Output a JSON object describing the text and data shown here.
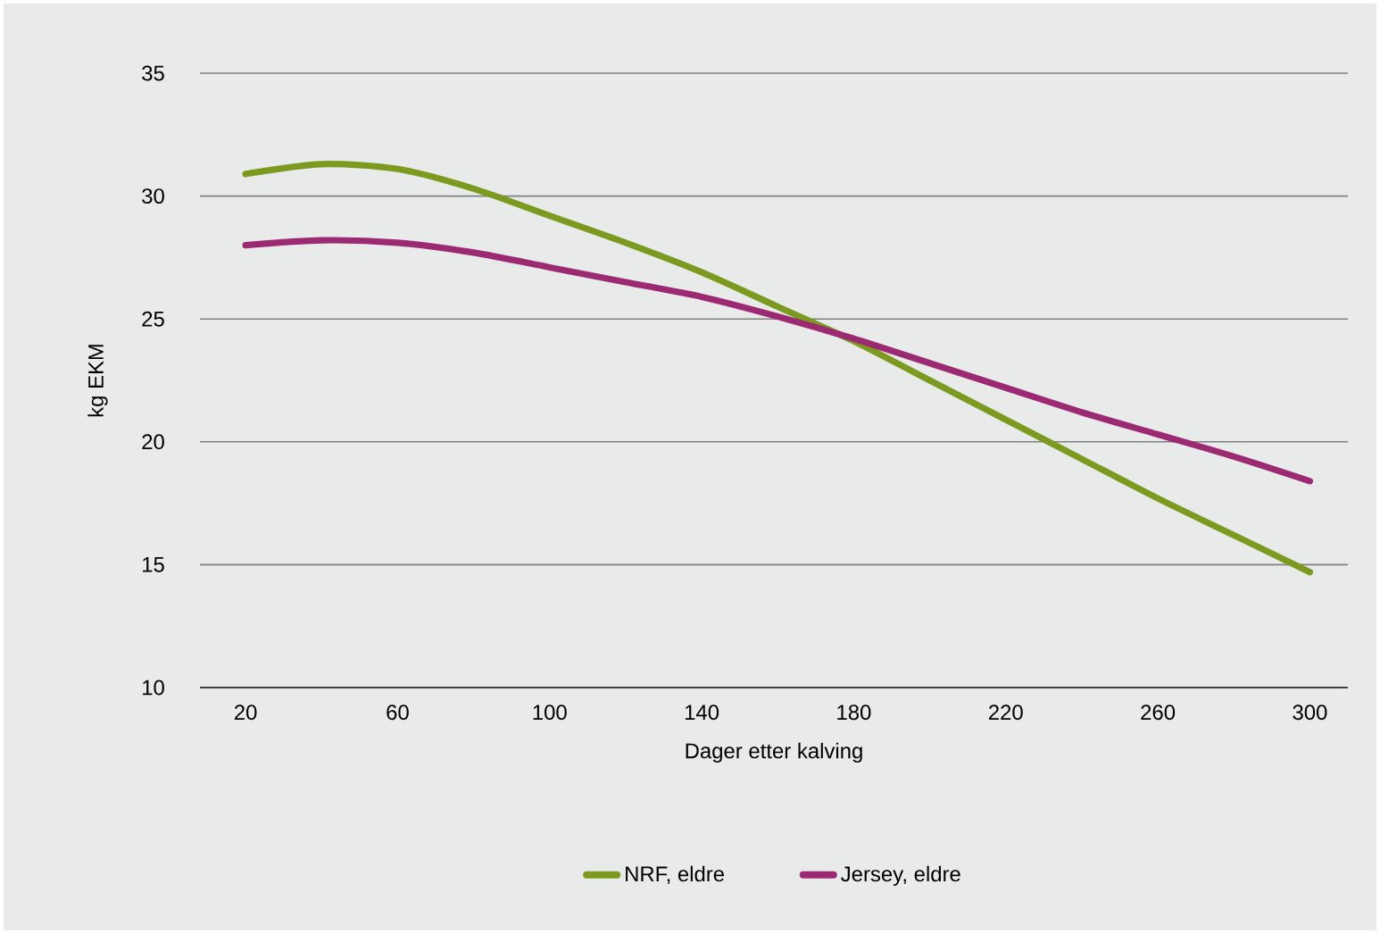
{
  "chart_data": {
    "type": "line",
    "xlabel": "Dager etter kalving",
    "ylabel": "kg EKM",
    "xlim": [
      8,
      310
    ],
    "ylim": [
      10,
      35
    ],
    "xticks": [
      20,
      60,
      100,
      140,
      180,
      220,
      260,
      300
    ],
    "yticks": [
      10,
      15,
      20,
      25,
      30,
      35
    ],
    "grid": "y",
    "legend": "bottom",
    "marker": "none",
    "line_style": "solid",
    "series": [
      {
        "name": "NRF, eldre",
        "color": "#7b9a1f",
        "x": [
          20,
          40,
          60,
          80,
          100,
          120,
          140,
          160,
          180,
          200,
          220,
          240,
          260,
          280,
          300
        ],
        "values": [
          30.9,
          31.3,
          31.1,
          30.3,
          29.2,
          28.1,
          26.9,
          25.5,
          24.1,
          22.5,
          20.9,
          19.3,
          17.7,
          16.2,
          14.7
        ]
      },
      {
        "name": "Jersey, eldre",
        "color": "#9c2a72",
        "x": [
          20,
          40,
          60,
          80,
          100,
          120,
          140,
          160,
          180,
          200,
          220,
          240,
          260,
          280,
          300
        ],
        "values": [
          28.0,
          28.2,
          28.1,
          27.7,
          27.1,
          26.5,
          25.9,
          25.1,
          24.2,
          23.2,
          22.2,
          21.2,
          20.3,
          19.4,
          18.4
        ]
      }
    ]
  }
}
